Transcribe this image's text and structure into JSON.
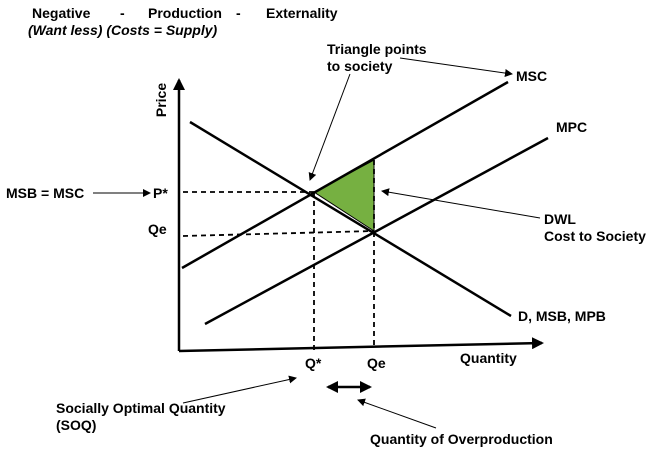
{
  "title": {
    "w1": "Negative",
    "d1": "-",
    "w2": "Production",
    "d2": "-",
    "w3": "Externality",
    "subtitle": "(Want less) (Costs = Supply)"
  },
  "axes": {
    "y_label": "Price",
    "x_label": "Quantity"
  },
  "curves": {
    "msc": "MSC",
    "mpc": "MPC",
    "demand": "D, MSB, MPB"
  },
  "ticks": {
    "p_star": "P*",
    "qe_y": "Qe",
    "q_star": "Q*",
    "qe_x": "Qe"
  },
  "annotations": {
    "triangle_line1": "Triangle points",
    "triangle_line2": "to society",
    "msb_msc": "MSB = MSC",
    "dwl_line1": "DWL",
    "dwl_line2": "Cost to Society",
    "soq_line1": "Socially Optimal Quantity",
    "soq_line2": "(SOQ)",
    "overproduction": "Quantity of Overproduction"
  },
  "colors": {
    "dwl_fill": "#76b041",
    "line": "#000000"
  }
}
